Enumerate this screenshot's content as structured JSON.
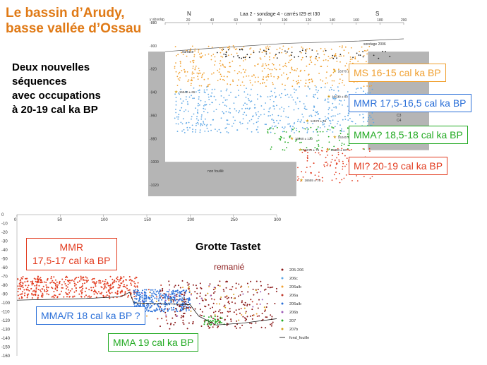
{
  "slide": {
    "title_line1": "Le bassin d’Arudy,",
    "title_line2": "basse vallée d’Ossau",
    "subtitle_lines": [
      "Deux nouvelles",
      "séquences",
      "avec occupations",
      "à 20-19 cal ka BP"
    ],
    "colors": {
      "title": "#e07a16",
      "orange": "#f0a030",
      "blue": "#5fa8e6",
      "green": "#22aa22",
      "red": "#e23b1f",
      "darkblue": "#2a6fd8",
      "darkred": "#8b1a1a"
    }
  },
  "chart_data": [
    {
      "type": "scatter",
      "title": "Laa 2 - sondage 4 - carrés I29 et I30",
      "ylabel": "y absolu",
      "xlim": [
        0,
        200
      ],
      "ylim": [
        -1020,
        -880
      ],
      "xticks": [
        "0",
        "20",
        "40",
        "60",
        "80",
        "100",
        "120",
        "140",
        "160",
        "180",
        "200"
      ],
      "yticks": [
        "-880",
        "-900",
        "-920",
        "-940",
        "-960",
        "-980",
        "-1000",
        "-1020"
      ],
      "orientation": [
        "N",
        "S"
      ],
      "annotations": [
        "surface",
        "sondage 2006",
        "non fouillé"
      ],
      "dates": [
        "16370 ± 70",
        "15540 ± 65",
        "16630 ± 80",
        "14570 ± 65",
        "16660 ± 130",
        "15240 ± 70",
        "16070 ± 75",
        "16350 ± 80",
        "16555 ± 75"
      ],
      "legend": [
        "C3",
        "C4"
      ],
      "series": [
        {
          "name": "MS 16-15 cal ka BP",
          "color": "#f0a030",
          "y_range": [
            -935,
            -900
          ]
        },
        {
          "name": "MMR 17,5-16,5 cal ka BP",
          "color": "#5fa8e6",
          "y_range": [
            -975,
            -935
          ]
        },
        {
          "name": "MMA? 18,5-18 cal ka BP",
          "color": "#22aa22",
          "y_range": [
            -990,
            -970
          ]
        },
        {
          "name": "MI? 20-19 cal ka BP",
          "color": "#e23b1f",
          "y_range": [
            -1018,
            -988
          ]
        }
      ],
      "labels": [
        {
          "text": "MS 16-15 cal ka BP",
          "color": "#f0a030"
        },
        {
          "text": "MMR 17,5-16,5 cal ka BP",
          "color": "#2a6fd8"
        },
        {
          "text": "MMA? 18,5-18 cal ka BP",
          "color": "#22aa22"
        },
        {
          "text": "MI? 20-19 cal ka BP",
          "color": "#e23b1f"
        }
      ]
    },
    {
      "type": "scatter",
      "title": "Grotte Tastet",
      "xlim": [
        0,
        300
      ],
      "ylim": [
        -160,
        0
      ],
      "xticks": [
        "0",
        "50",
        "100",
        "150",
        "200",
        "250",
        "300"
      ],
      "yticks": [
        "0",
        "-10",
        "-20",
        "-30",
        "-40",
        "-50",
        "-60",
        "-70",
        "-80",
        "-90",
        "-100",
        "-110",
        "-120",
        "-130",
        "-140",
        "-150",
        "-160"
      ],
      "annotations": [
        "remanié"
      ],
      "legend": [
        {
          "label": "205-206",
          "color": "#8b1a1a"
        },
        {
          "label": "206c",
          "color": "#5fa8e6"
        },
        {
          "label": "206a/b",
          "color": "#f0a030"
        },
        {
          "label": "206a",
          "color": "#c0392b"
        },
        {
          "label": "206a/b",
          "color": "#2a6fd8"
        },
        {
          "label": "206b",
          "color": "#9b59b6"
        },
        {
          "label": "207",
          "color": "#22aa22"
        },
        {
          "label": "207b",
          "color": "#d4a017"
        },
        {
          "label": "fond_fouille",
          "color": "#000000"
        }
      ],
      "series": [
        {
          "name": "MMR 17,5-17 cal ka BP",
          "color": "#e23b1f",
          "x_range": [
            0,
            140
          ],
          "y_range": [
            -95,
            -70
          ]
        },
        {
          "name": "MMA/R 18 cal ka BP ?",
          "color": "#2a6fd8",
          "x_range": [
            135,
            200
          ],
          "y_range": [
            -110,
            -85
          ]
        },
        {
          "name": "MMA 19 cal ka BP",
          "color": "#22aa22",
          "x_range": [
            215,
            240
          ],
          "y_range": [
            -125,
            -115
          ]
        },
        {
          "name": "remanié",
          "color": "#8b1a1a",
          "x_range": [
            165,
            300
          ],
          "y_range": [
            -130,
            -75
          ]
        }
      ],
      "labels": [
        {
          "text_line1": "MMR",
          "text_line2": "17,5-17 cal ka BP",
          "color": "#e23b1f"
        },
        {
          "text": "MMA/R 18 cal ka BP ?",
          "color": "#2a6fd8"
        },
        {
          "text": "MMA 19 cal ka BP",
          "color": "#22aa22"
        }
      ]
    }
  ]
}
